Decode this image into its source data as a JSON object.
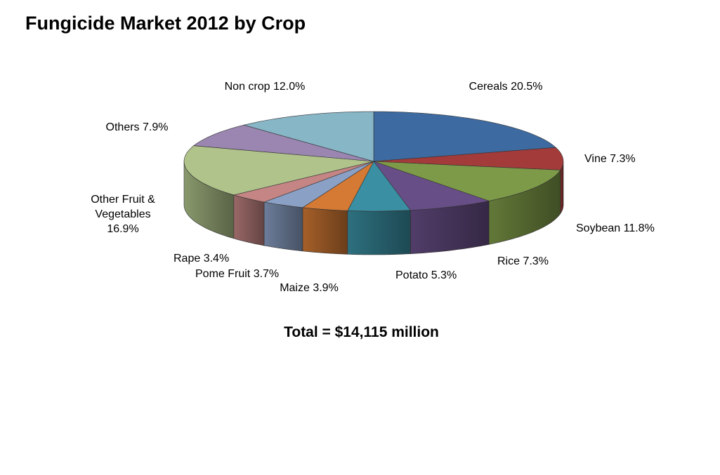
{
  "chart_data": {
    "type": "pie",
    "title": "Fungicide Market 2012 by Crop",
    "unit": "%",
    "slices": [
      {
        "name": "Cereals",
        "value": 20.5,
        "label": "Cereals 20.5%",
        "color": "#3d6aa0"
      },
      {
        "name": "Vine",
        "value": 7.3,
        "label": "Vine 7.3%",
        "color": "#a23b3a"
      },
      {
        "name": "Soybean",
        "value": 11.8,
        "label": "Soybean 11.8%",
        "color": "#7d9a48"
      },
      {
        "name": "Rice",
        "value": 7.3,
        "label": "Rice 7.3%",
        "color": "#684e87"
      },
      {
        "name": "Potato",
        "value": 5.3,
        "label": "Potato 5.3%",
        "color": "#3a8fa3"
      },
      {
        "name": "Maize",
        "value": 3.9,
        "label": "Maize 3.9%",
        "color": "#d47a34"
      },
      {
        "name": "Pome Fruit",
        "value": 3.7,
        "label": "Pome Fruit 3.7%",
        "color": "#8ba0c5"
      },
      {
        "name": "Rape",
        "value": 3.4,
        "label": "Rape 3.4%",
        "color": "#c48584"
      },
      {
        "name": "Other Fruit & Vegetables",
        "value": 16.9,
        "label": [
          "Other Fruit &",
          "Vegetables",
          "16.9%"
        ],
        "color": "#b0c38b"
      },
      {
        "name": "Others",
        "value": 7.9,
        "label": "Others 7.9%",
        "color": "#9a86b0"
      },
      {
        "name": "Non crop",
        "value": 12.0,
        "label": "Non crop 12.0%",
        "color": "#87b6c7"
      }
    ],
    "total_note": "Total = $14,115 million"
  }
}
